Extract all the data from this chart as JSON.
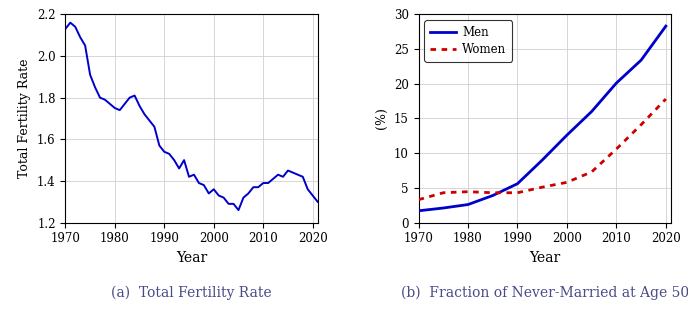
{
  "tfr_years": [
    1970,
    1971,
    1972,
    1973,
    1974,
    1975,
    1976,
    1977,
    1978,
    1979,
    1980,
    1981,
    1982,
    1983,
    1984,
    1985,
    1986,
    1987,
    1988,
    1989,
    1990,
    1991,
    1992,
    1993,
    1994,
    1995,
    1996,
    1997,
    1998,
    1999,
    2000,
    2001,
    2002,
    2003,
    2004,
    2005,
    2006,
    2007,
    2008,
    2009,
    2010,
    2011,
    2012,
    2013,
    2014,
    2015,
    2016,
    2017,
    2018,
    2019,
    2020,
    2021
  ],
  "tfr_values": [
    2.13,
    2.16,
    2.14,
    2.09,
    2.05,
    1.91,
    1.85,
    1.8,
    1.79,
    1.77,
    1.75,
    1.74,
    1.77,
    1.8,
    1.81,
    1.76,
    1.72,
    1.69,
    1.66,
    1.57,
    1.54,
    1.53,
    1.5,
    1.46,
    1.5,
    1.42,
    1.43,
    1.39,
    1.38,
    1.34,
    1.36,
    1.33,
    1.32,
    1.29,
    1.29,
    1.26,
    1.32,
    1.34,
    1.37,
    1.37,
    1.39,
    1.39,
    1.41,
    1.43,
    1.42,
    1.45,
    1.44,
    1.43,
    1.42,
    1.36,
    1.33,
    1.3
  ],
  "nm_years_men": [
    1970,
    1975,
    1980,
    1985,
    1990,
    1995,
    2000,
    2005,
    2010,
    2015,
    2020
  ],
  "nm_men": [
    1.7,
    2.1,
    2.6,
    3.9,
    5.6,
    9.0,
    12.6,
    16.0,
    20.1,
    23.4,
    28.3
  ],
  "nm_years_women": [
    1970,
    1975,
    1980,
    1985,
    1990,
    1995,
    2000,
    2005,
    2010,
    2015,
    2020
  ],
  "nm_women": [
    3.3,
    4.3,
    4.45,
    4.3,
    4.3,
    5.1,
    5.8,
    7.3,
    10.6,
    14.1,
    17.8
  ],
  "line_color": "#0000cc",
  "men_color": "#0000cc",
  "women_color": "#cc0000",
  "tfr_xlim": [
    1970,
    2021
  ],
  "tfr_ylim": [
    1.2,
    2.2
  ],
  "tfr_yticks": [
    1.2,
    1.4,
    1.6,
    1.8,
    2.0,
    2.2
  ],
  "tfr_xticks": [
    1970,
    1980,
    1990,
    2000,
    2010,
    2020
  ],
  "nm_xlim": [
    1970,
    2021
  ],
  "nm_ylim": [
    0,
    30
  ],
  "nm_yticks": [
    0,
    5,
    10,
    15,
    20,
    25,
    30
  ],
  "nm_xticks": [
    1970,
    1980,
    1990,
    2000,
    2010,
    2020
  ],
  "tfr_xlabel": "Year",
  "tfr_ylabel": "Total Fertility Rate",
  "nm_xlabel": "Year",
  "nm_ylabel": "(%)",
  "caption_a": "(a)  Total Fertility Rate",
  "caption_b": "(b)  Fraction of Never-Married at Age 50",
  "legend_men": "Men",
  "legend_women": "Women",
  "caption_color": "#4a4a8a",
  "grid_color": "#d0d0d0"
}
